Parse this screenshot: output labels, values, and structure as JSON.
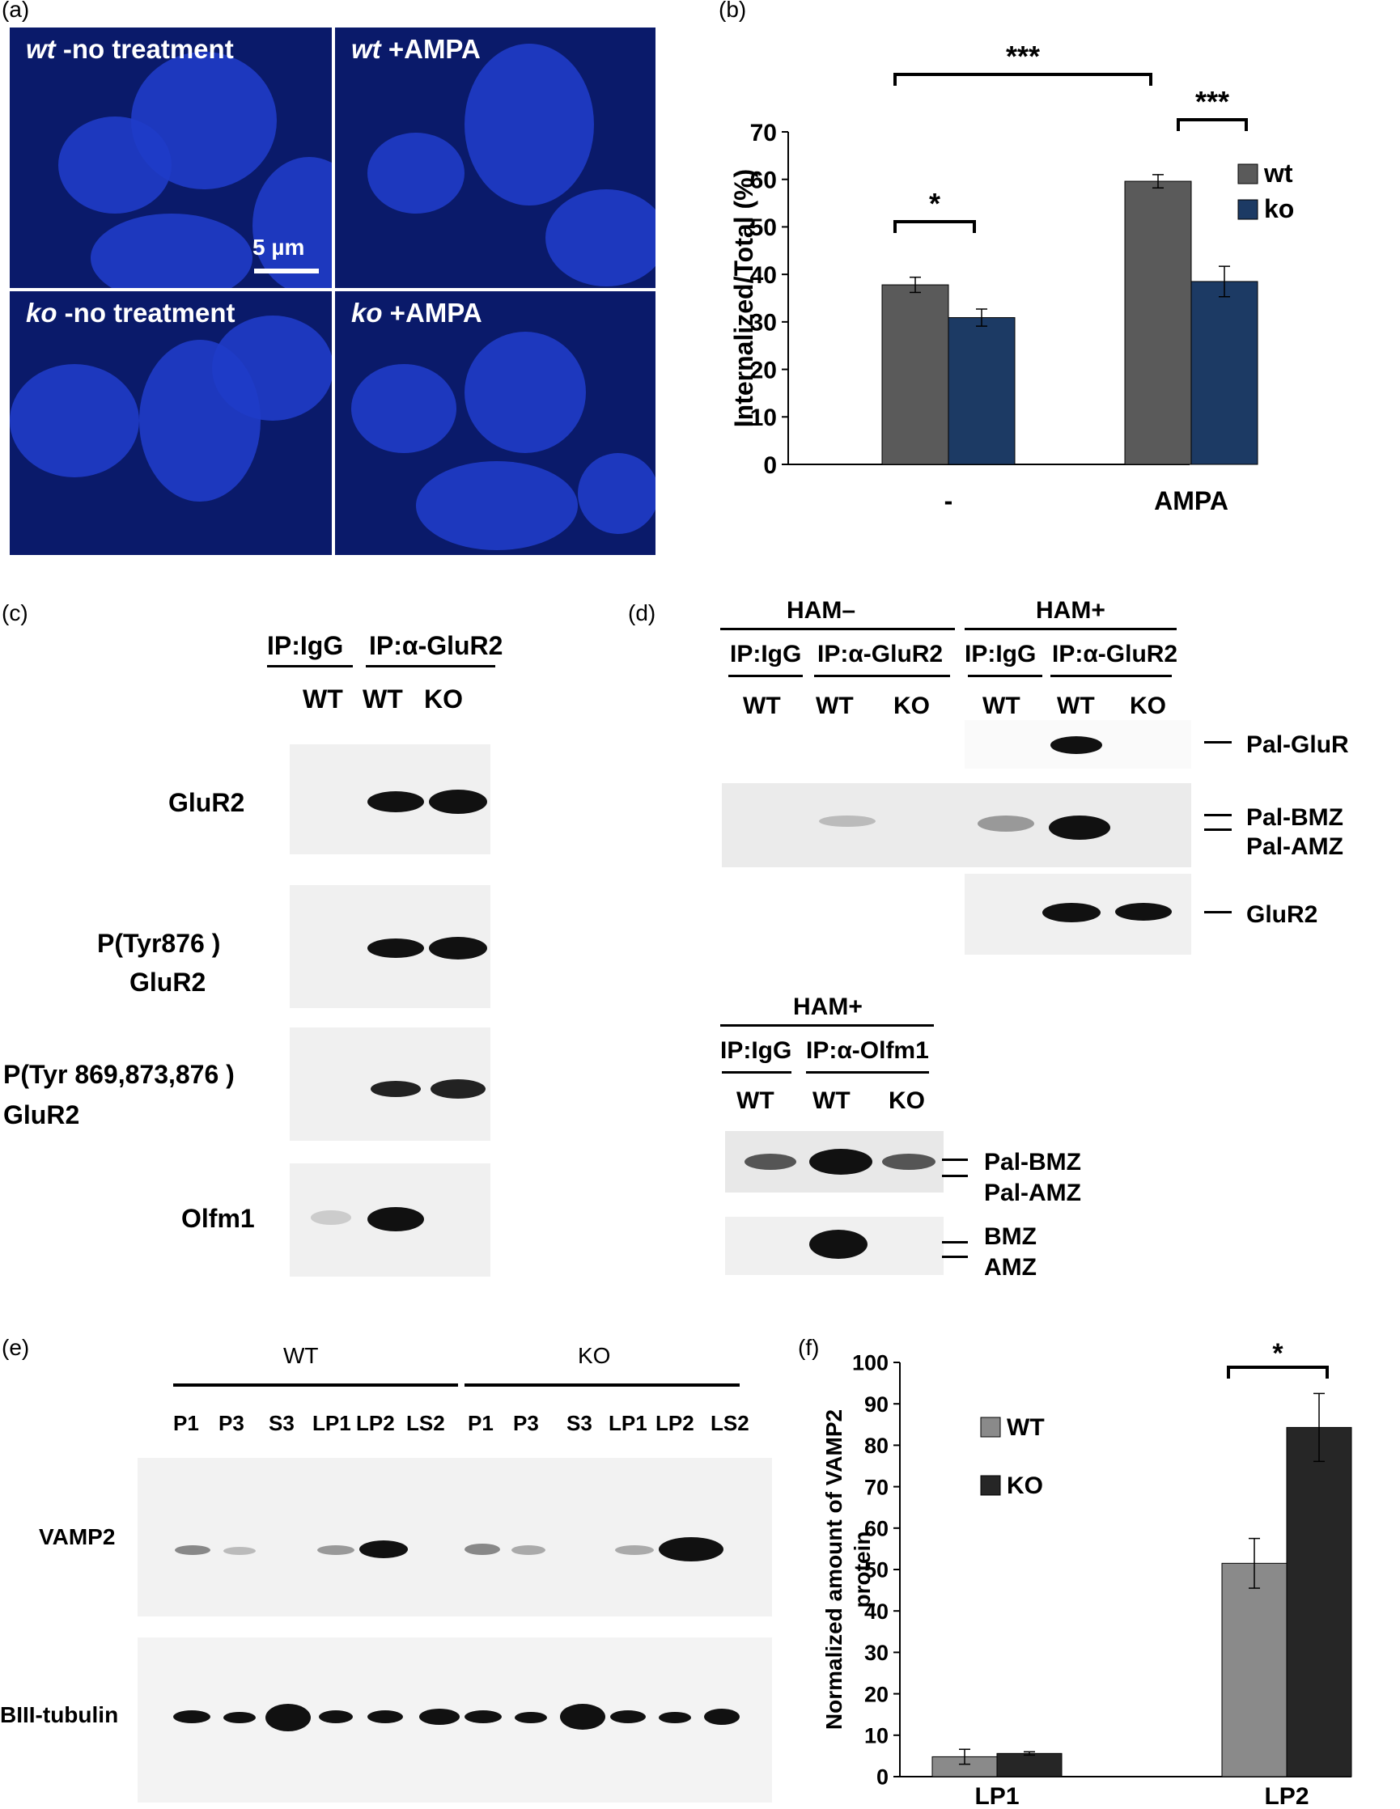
{
  "panels": {
    "a": {
      "label": "(a)"
    },
    "b": {
      "label": "(b)"
    },
    "c": {
      "label": "(c)"
    },
    "d": {
      "label": "(d)"
    },
    "e": {
      "label": "(e)"
    },
    "f": {
      "label": "(f)"
    }
  },
  "micrographs": [
    {
      "prefix": "wt",
      "suffix": " -no treatment"
    },
    {
      "prefix": "wt",
      "suffix": " +AMPA"
    },
    {
      "prefix": "ko",
      "suffix": " -no treatment"
    },
    {
      "prefix": "ko",
      "suffix": " +AMPA"
    }
  ],
  "scalebar": {
    "label": "5 µm"
  },
  "panel_c": {
    "headers": {
      "igg": "IP:IgG",
      "glur2": "IP:α-GluR2"
    },
    "lanes": [
      "WT",
      "WT",
      "KO"
    ],
    "rows": [
      "GluR2",
      "P(Tyr876 )",
      "GluR2",
      "P(Tyr 869,873,876 )",
      "GluR2",
      "Olfm1"
    ]
  },
  "panel_d": {
    "top": {
      "groups": [
        "HAM–",
        "HAM+"
      ],
      "sub": [
        "IP:IgG",
        "IP:α-GluR2",
        "IP:IgG",
        "IP:α-GluR2"
      ],
      "lanes": [
        "WT",
        "WT",
        "KO",
        "WT",
        "WT",
        "KO"
      ],
      "markers": [
        "Pal-GluR",
        "Pal-BMZ",
        "Pal-AMZ",
        "GluR2"
      ]
    },
    "bottom": {
      "group": "HAM+",
      "sub": [
        "IP:IgG",
        "IP:α-Olfm1"
      ],
      "lanes": [
        "WT",
        "WT",
        "KO"
      ],
      "markers": [
        "Pal-BMZ",
        "Pal-AMZ",
        "BMZ",
        "AMZ"
      ]
    }
  },
  "panel_e": {
    "groups": [
      "WT",
      "KO"
    ],
    "lanes": [
      "P1",
      "P3",
      "S3",
      "LP1",
      "LP2",
      "LS2",
      "P1",
      "P3",
      "S3",
      "LP1",
      "LP2",
      "LS2"
    ],
    "rows": [
      "VAMP2",
      "BIII-tubulin"
    ]
  },
  "chart_data": [
    {
      "panel": "b",
      "type": "bar",
      "categories": [
        "-",
        "AMPA"
      ],
      "series": [
        {
          "name": "wt",
          "values": [
            37.8,
            59.6
          ],
          "errors": [
            1.6,
            1.4
          ],
          "color": "#5a5a5a"
        },
        {
          "name": "ko",
          "values": [
            30.9,
            38.5
          ],
          "errors": [
            1.8,
            3.2
          ],
          "color": "#1c3a64"
        }
      ],
      "ylabel": "Internalized/Total (%)",
      "ylim": [
        0,
        70
      ],
      "yticks": [
        0,
        10,
        20,
        30,
        40,
        50,
        60,
        70
      ],
      "legend": "top-right",
      "significance": [
        "*",
        "***",
        "***"
      ]
    },
    {
      "panel": "f",
      "type": "bar",
      "categories": [
        "LP1",
        "LP2"
      ],
      "series": [
        {
          "name": "WT",
          "values": [
            4.8,
            51.5
          ],
          "errors": [
            1.8,
            6.0
          ],
          "color": "#8a8a8a"
        },
        {
          "name": "KO",
          "values": [
            5.6,
            84.3
          ],
          "errors": [
            0.4,
            8.2
          ],
          "color": "#262626"
        }
      ],
      "ylabel": "Normalized amount of VAMP2 protein",
      "ylim": [
        0,
        100
      ],
      "yticks": [
        0,
        10,
        20,
        30,
        40,
        50,
        60,
        70,
        80,
        90,
        100
      ],
      "legend": "top-left",
      "significance": [
        "*"
      ]
    }
  ]
}
